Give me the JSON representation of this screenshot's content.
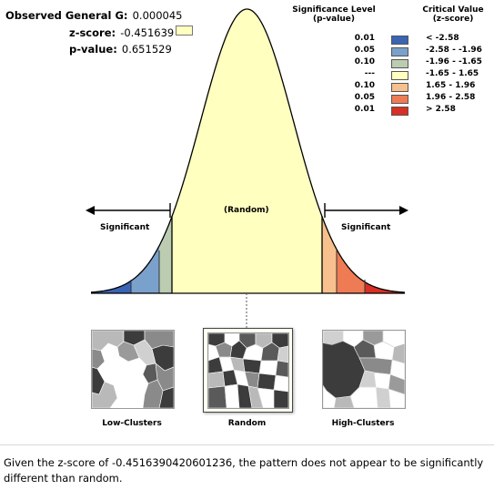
{
  "stats": {
    "general_g_label": "Observed General G:",
    "general_g_value": "0.000045",
    "zscore_label": "z-score:",
    "zscore_value": "-0.451639",
    "pvalue_label": "p-value:",
    "pvalue_value": "0.651529"
  },
  "legend": {
    "sig_header_line1": "Significance Level",
    "sig_header_line2": "(p-value)",
    "crit_header_line1": "Critical Value",
    "crit_header_line2": "(z-score)",
    "rows": [
      {
        "p": "0.01",
        "color": "#3a64b4",
        "z": "< -2.58"
      },
      {
        "p": "0.05",
        "color": "#7aa0cc",
        "z": "-2.58 - -1.96"
      },
      {
        "p": "0.10",
        "color": "#bcccb0",
        "z": "-1.96 - -1.65"
      },
      {
        "p": "---",
        "color": "#ffffc0",
        "z": "-1.65 - 1.65"
      },
      {
        "p": "0.10",
        "color": "#f7c08c",
        "z": "1.65 - 1.96"
      },
      {
        "p": "0.05",
        "color": "#ef7b54",
        "z": "1.96 - 2.58"
      },
      {
        "p": "0.01",
        "color": "#d83024",
        "z": "> 2.58"
      }
    ]
  },
  "curve": {
    "left_label": "Significant",
    "center_label": "(Random)",
    "right_label": "Significant"
  },
  "thumbnails": [
    {
      "label": "Low-Clusters"
    },
    {
      "label": "Random"
    },
    {
      "label": "High-Clusters"
    }
  ],
  "footer": {
    "text": "Given the z-score of -0.4516390420601236, the pattern does not appear to be significantly different than random."
  }
}
